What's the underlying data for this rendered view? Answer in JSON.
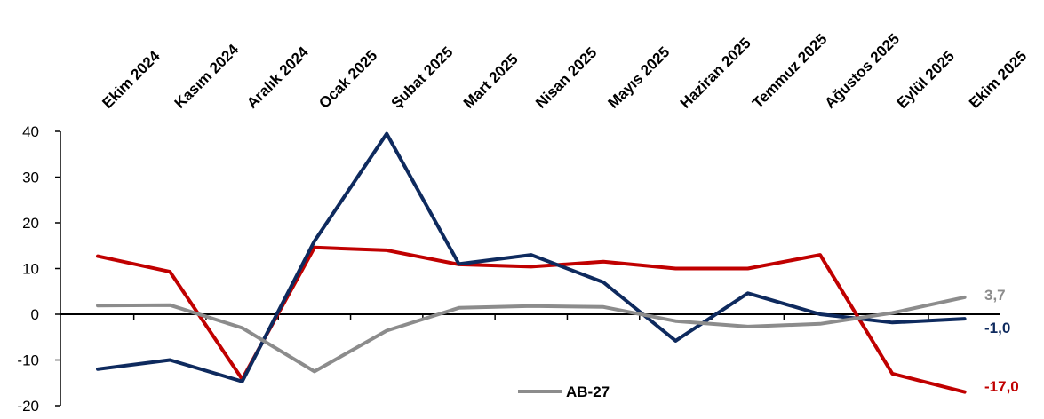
{
  "chart_data": {
    "type": "line",
    "categories": [
      "Ekim 2024",
      "Kasım 2024",
      "Aralık 2024",
      "Ocak 2025",
      "Şubat 2025",
      "Mart 2025",
      "Nisan 2025",
      "Mayıs 2025",
      "Haziran 2025",
      "Temmuz 2025",
      "Ağustos 2025",
      "Eylül 2025",
      "Ekim 2025"
    ],
    "ylim": [
      -20,
      40
    ],
    "yticks": [
      -20,
      -10,
      0,
      10,
      20,
      30,
      40
    ],
    "grid": false,
    "series": [
      {
        "color": "#C00000",
        "values": [
          12.7,
          9.3,
          -14.2,
          14.6,
          14.0,
          10.9,
          10.4,
          11.5,
          10.0,
          10.0,
          13.0,
          -13.0,
          -17.0
        ],
        "end_label": "-17,0"
      },
      {
        "color": "#0E2A5E",
        "values": [
          -12.0,
          -10.0,
          -14.7,
          16.0,
          39.5,
          11.0,
          13.0,
          7.0,
          -5.8,
          4.6,
          0.0,
          -1.8,
          -1.0
        ],
        "end_label": "-1,0"
      },
      {
        "name": "AB-27",
        "color": "#8C8C8C",
        "values": [
          1.9,
          2.0,
          -3.0,
          -12.5,
          -3.6,
          1.4,
          1.8,
          1.6,
          -1.5,
          -2.7,
          -2.1,
          0.3,
          3.7
        ],
        "end_label": "3,7"
      }
    ],
    "legend": {
      "position": "bottom-center",
      "entries": [
        "AB-27"
      ]
    }
  }
}
